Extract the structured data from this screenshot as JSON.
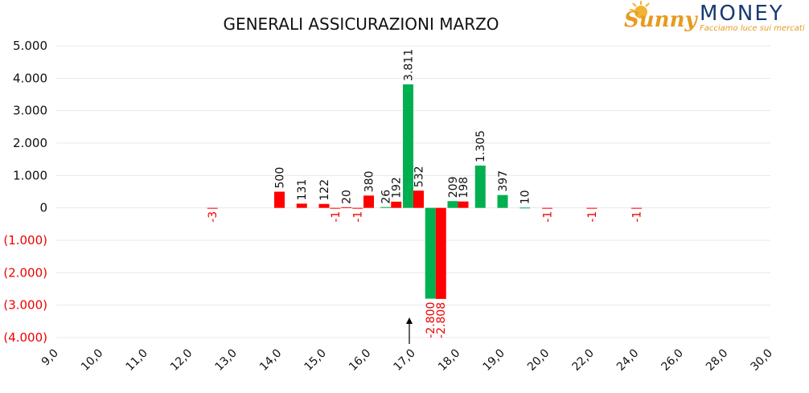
{
  "logo": {
    "name_left": "Sunny",
    "name_right": "MONEY",
    "tagline": "Facciamo luce sui mercati"
  },
  "colors": {
    "positive": "#00b050",
    "negative": "#ff0000",
    "negative_label": "#ee0000",
    "text": "#111111",
    "grid": "#e8e8e8",
    "logo_orange": "#e79a1f",
    "logo_blue": "#173a72"
  },
  "marker": {
    "icon": "up-arrow-icon"
  },
  "chart_data": {
    "type": "bar",
    "title": "GENERALI ASSICURAZIONI MARZO",
    "xlabel": "",
    "ylabel": "",
    "ylim": [
      -4000,
      5000
    ],
    "grid": true,
    "legend": "none",
    "y_ticks": [
      {
        "value": 5000,
        "label": "5.000"
      },
      {
        "value": 4000,
        "label": "4.000"
      },
      {
        "value": 3000,
        "label": "3.000"
      },
      {
        "value": 2000,
        "label": "2.000"
      },
      {
        "value": 1000,
        "label": "1.000"
      },
      {
        "value": 0,
        "label": "0"
      },
      {
        "value": -1000,
        "label": "(1.000)"
      },
      {
        "value": -2000,
        "label": "(2.000)"
      },
      {
        "value": -3000,
        "label": "(3.000)"
      },
      {
        "value": -4000,
        "label": "(4.000)"
      }
    ],
    "x_ticks": [
      "9,0",
      "10,0",
      "11,0",
      "12,0",
      "13,0",
      "14,0",
      "15,0",
      "16,0",
      "17,0",
      "18,0",
      "19,0",
      "20,0",
      "22,0",
      "24,0",
      "26,0",
      "28,0",
      "30,0"
    ],
    "bars": [
      {
        "x": 12.5,
        "side": "put",
        "value": -3,
        "label": "-3"
      },
      {
        "x": 14.0,
        "side": "put",
        "value": 500,
        "label": "500"
      },
      {
        "x": 14.5,
        "side": "put",
        "value": 131,
        "label": "131"
      },
      {
        "x": 15.0,
        "side": "put",
        "value": 122,
        "label": "122"
      },
      {
        "x": 15.25,
        "side": "put",
        "value": -1,
        "label": "-1"
      },
      {
        "x": 15.5,
        "side": "put",
        "value": 20,
        "label": "20"
      },
      {
        "x": 15.75,
        "side": "put",
        "value": -1,
        "label": "-1"
      },
      {
        "x": 16.0,
        "side": "put",
        "value": 380,
        "label": "380"
      },
      {
        "x": 16.5,
        "side": "call",
        "value": 26,
        "label": "26"
      },
      {
        "x": 16.5,
        "side": "put",
        "value": 192,
        "label": "192"
      },
      {
        "x": 17.0,
        "side": "call",
        "value": 3811,
        "label": "3.811"
      },
      {
        "x": 17.0,
        "side": "put",
        "value": 532,
        "label": "532"
      },
      {
        "x": 17.5,
        "side": "call",
        "value": -2800,
        "label": "-2.800"
      },
      {
        "x": 17.5,
        "side": "put",
        "value": -2808,
        "label": "-2.808"
      },
      {
        "x": 18.0,
        "side": "call",
        "value": 209,
        "label": "209"
      },
      {
        "x": 18.0,
        "side": "put",
        "value": 198,
        "label": "198"
      },
      {
        "x": 18.5,
        "side": "call",
        "value": 1305,
        "label": "1.305"
      },
      {
        "x": 19.0,
        "side": "call",
        "value": 397,
        "label": "397"
      },
      {
        "x": 19.5,
        "side": "call",
        "value": 10,
        "label": "10"
      },
      {
        "x": 20.0,
        "side": "put",
        "value": -1,
        "label": "-1"
      },
      {
        "x": 22.0,
        "side": "put",
        "value": -1,
        "label": "-1"
      },
      {
        "x": 24.0,
        "side": "put",
        "value": -1,
        "label": "-1"
      }
    ],
    "marker_x": 17.0
  }
}
